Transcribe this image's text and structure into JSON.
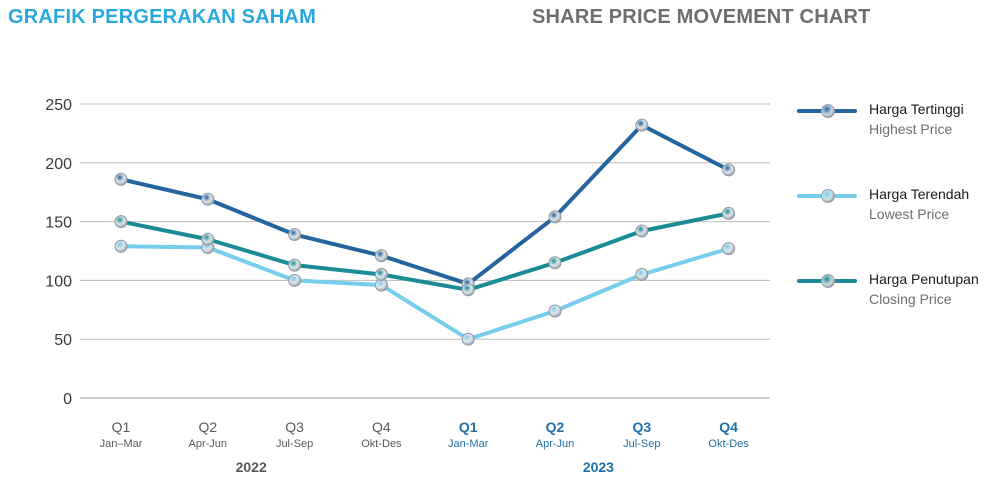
{
  "header": {
    "title_id": "GRAFIK PERGERAKAN SAHAM",
    "title_en": "SHARE PRICE MOVEMENT CHART"
  },
  "colors": {
    "title_id": "#29a8df",
    "title_en": "#6d6e71",
    "highest": "#25649c",
    "lowest": "#79cdec",
    "closing": "#1b8c97",
    "year_2022": "#58595b",
    "year_2023": "#1f6fa8"
  },
  "legend": [
    {
      "label": "Harga Tertinggi",
      "sub": "Highest Price",
      "color_key": "highest"
    },
    {
      "label": "Harga Terendah",
      "sub": "Lowest Price",
      "color_key": "lowest"
    },
    {
      "label": "Harga Penutupan",
      "sub": "Closing Price",
      "color_key": "closing"
    }
  ],
  "chart_data": {
    "type": "line",
    "categories": [
      {
        "quarter": "Q1",
        "months": "Jan–Mar",
        "year": "2022"
      },
      {
        "quarter": "Q2",
        "months": "Apr-Jun",
        "year": "2022"
      },
      {
        "quarter": "Q3",
        "months": "Jul-Sep",
        "year": "2022"
      },
      {
        "quarter": "Q4",
        "months": "Okt-Des",
        "year": "2022"
      },
      {
        "quarter": "Q1",
        "months": "Jan-Mar",
        "year": "2023"
      },
      {
        "quarter": "Q2",
        "months": "Apr-Jun",
        "year": "2023"
      },
      {
        "quarter": "Q3",
        "months": "Jul-Sep",
        "year": "2023"
      },
      {
        "quarter": "Q4",
        "months": "Okt-Des",
        "year": "2023"
      }
    ],
    "year_groups": [
      {
        "label": "2022",
        "start": 0,
        "end": 3
      },
      {
        "label": "2023",
        "start": 4,
        "end": 7
      }
    ],
    "y_ticks": [
      0,
      50,
      100,
      150,
      200,
      250
    ],
    "ylim": [
      0,
      250
    ],
    "grid": true,
    "series": [
      {
        "name": "Harga Tertinggi",
        "color_key": "highest",
        "values": [
          186,
          169,
          139,
          121,
          97,
          154,
          232,
          194
        ]
      },
      {
        "name": "Harga Terendah",
        "color_key": "lowest",
        "values": [
          129,
          128,
          100,
          96,
          50,
          74,
          105,
          127
        ]
      },
      {
        "name": "Harga Penutupan",
        "color_key": "closing",
        "values": [
          150,
          135,
          113,
          105,
          92,
          115,
          142,
          157
        ]
      }
    ],
    "legend_position": "right"
  }
}
